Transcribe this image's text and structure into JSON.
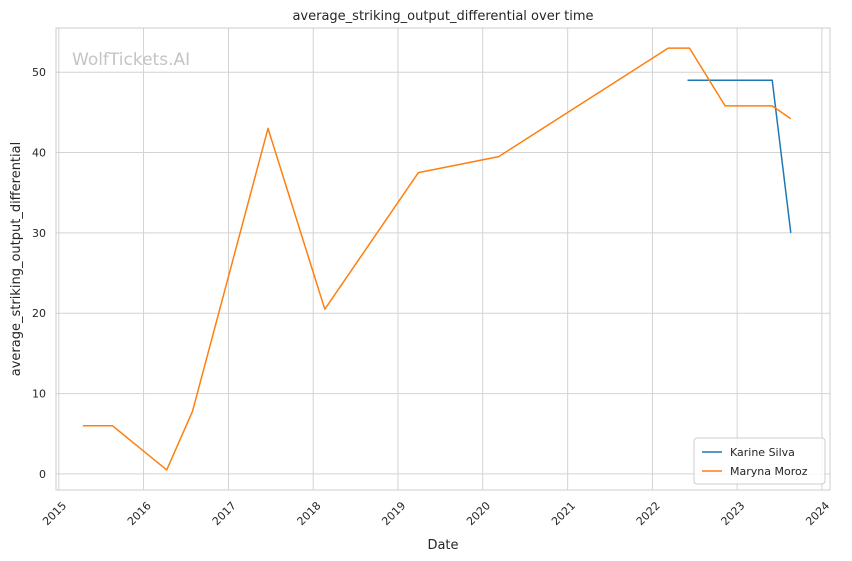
{
  "chart_data": {
    "type": "line",
    "title": "average_striking_output_differential over time",
    "xlabel": "Date",
    "ylabel": "average_striking_output_differential",
    "watermark": "WolfTickets.AI",
    "x_ticks": [
      "2015",
      "2016",
      "2017",
      "2018",
      "2019",
      "2020",
      "2021",
      "2022",
      "2023",
      "2024"
    ],
    "y_ticks": [
      0,
      10,
      20,
      30,
      40,
      50
    ],
    "xlim": [
      "2014-12-20",
      "2024-02-05"
    ],
    "ylim": [
      -2,
      55.5
    ],
    "grid": true,
    "legend_position": "bottom-right",
    "series": [
      {
        "name": "Karine Silva",
        "color": "#1f77b4",
        "points": [
          [
            "2022-06-01",
            49
          ],
          [
            "2023-06-01",
            49
          ],
          [
            "2023-08-20",
            30
          ]
        ]
      },
      {
        "name": "Maryna Moroz",
        "color": "#ff7f0e",
        "points": [
          [
            "2015-04-15",
            6
          ],
          [
            "2015-08-20",
            6
          ],
          [
            "2016-04-10",
            0.5
          ],
          [
            "2016-07-30",
            7.8
          ],
          [
            "2017-06-20",
            43
          ],
          [
            "2018-02-20",
            20.5
          ],
          [
            "2019-03-30",
            37.5
          ],
          [
            "2020-03-10",
            39.5
          ],
          [
            "2022-03-10",
            53
          ],
          [
            "2022-06-10",
            53
          ],
          [
            "2022-11-10",
            45.8
          ],
          [
            "2023-06-01",
            45.8
          ],
          [
            "2023-08-20",
            44.2
          ]
        ]
      }
    ]
  }
}
